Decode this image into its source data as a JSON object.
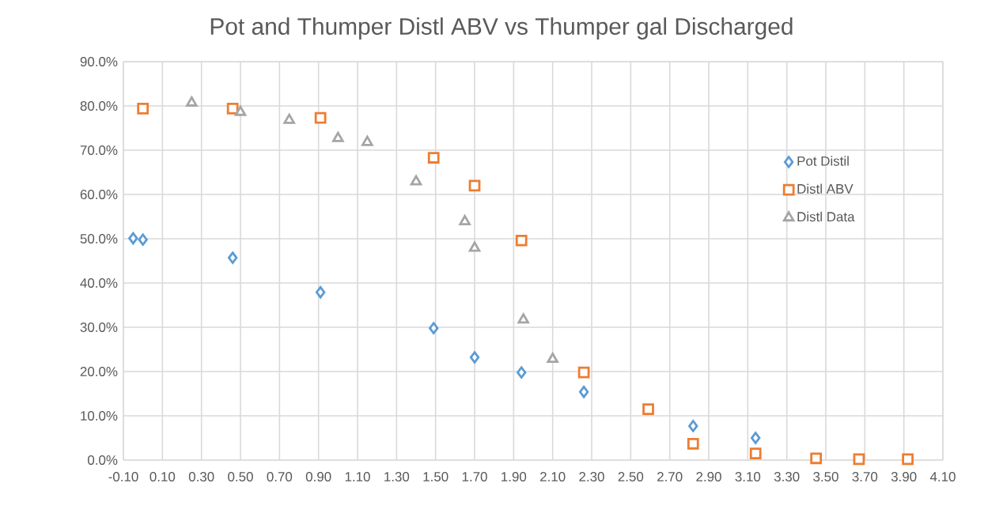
{
  "chart_data": {
    "type": "scatter",
    "title": "Pot and Thumper Distl ABV vs Thumper gal Discharged",
    "series": [
      {
        "name": "Pot Distil",
        "color": "#5b9bd5",
        "marker": "diamond",
        "x": [
          -0.05,
          0.0,
          0.46,
          0.91,
          1.49,
          1.7,
          1.94,
          2.26,
          2.59,
          2.82,
          3.14
        ],
        "values": [
          50.1,
          49.8,
          45.7,
          37.9,
          29.8,
          23.2,
          19.8,
          15.4,
          null,
          7.7,
          5.0
        ]
      },
      {
        "name": "Distl ABV",
        "color": "#ed7d31",
        "marker": "square",
        "x": [
          0.0,
          0.46,
          0.91,
          1.49,
          1.7,
          1.94,
          2.26,
          2.59,
          2.82,
          3.14,
          3.45,
          3.67,
          3.92
        ],
        "values": [
          79.4,
          79.4,
          77.3,
          68.3,
          62.0,
          49.6,
          19.8,
          11.5,
          3.7,
          1.5,
          0.4,
          0.2,
          0.2
        ]
      },
      {
        "name": "Distl Data",
        "color": "#a5a5a5",
        "marker": "triangle",
        "x": [
          0.25,
          0.5,
          0.75,
          1.0,
          1.15,
          1.4,
          1.65,
          1.7,
          1.95,
          2.1
        ],
        "values": [
          80.7,
          78.6,
          76.8,
          72.7,
          71.8,
          62.9,
          53.9,
          47.9,
          31.7,
          22.8
        ]
      }
    ],
    "xlim": [
      -0.1,
      4.1
    ],
    "xticks": [
      {
        "value": -0.1,
        "label": "-0.10"
      },
      {
        "value": 0.1,
        "label": "0.10"
      },
      {
        "value": 0.3,
        "label": "0.30"
      },
      {
        "value": 0.5,
        "label": "0.50"
      },
      {
        "value": 0.7,
        "label": "0.70"
      },
      {
        "value": 0.9,
        "label": "0.90"
      },
      {
        "value": 1.1,
        "label": "1.10"
      },
      {
        "value": 1.3,
        "label": "1.30"
      },
      {
        "value": 1.5,
        "label": "1.50"
      },
      {
        "value": 1.7,
        "label": "1.70"
      },
      {
        "value": 1.9,
        "label": "1.90"
      },
      {
        "value": 2.1,
        "label": "2.10"
      },
      {
        "value": 2.3,
        "label": "2.30"
      },
      {
        "value": 2.5,
        "label": "2.50"
      },
      {
        "value": 2.7,
        "label": "2.70"
      },
      {
        "value": 2.9,
        "label": "2.90"
      },
      {
        "value": 3.1,
        "label": "3.10"
      },
      {
        "value": 3.3,
        "label": "3.30"
      },
      {
        "value": 3.5,
        "label": "3.50"
      },
      {
        "value": 3.7,
        "label": "3.70"
      },
      {
        "value": 3.9,
        "label": "3.90"
      },
      {
        "value": 4.1,
        "label": "4.10"
      }
    ],
    "ylim": [
      0,
      90
    ],
    "yticks": [
      {
        "value": 0,
        "label": "0.0%"
      },
      {
        "value": 10,
        "label": "10.0%"
      },
      {
        "value": 20,
        "label": "20.0%"
      },
      {
        "value": 30,
        "label": "30.0%"
      },
      {
        "value": 40,
        "label": "40.0%"
      },
      {
        "value": 50,
        "label": "50.0%"
      },
      {
        "value": 60,
        "label": "60.0%"
      },
      {
        "value": 70,
        "label": "70.0%"
      },
      {
        "value": 80,
        "label": "80.0%"
      },
      {
        "value": 90,
        "label": "90.0%"
      }
    ],
    "grid": true,
    "legend": "right"
  }
}
